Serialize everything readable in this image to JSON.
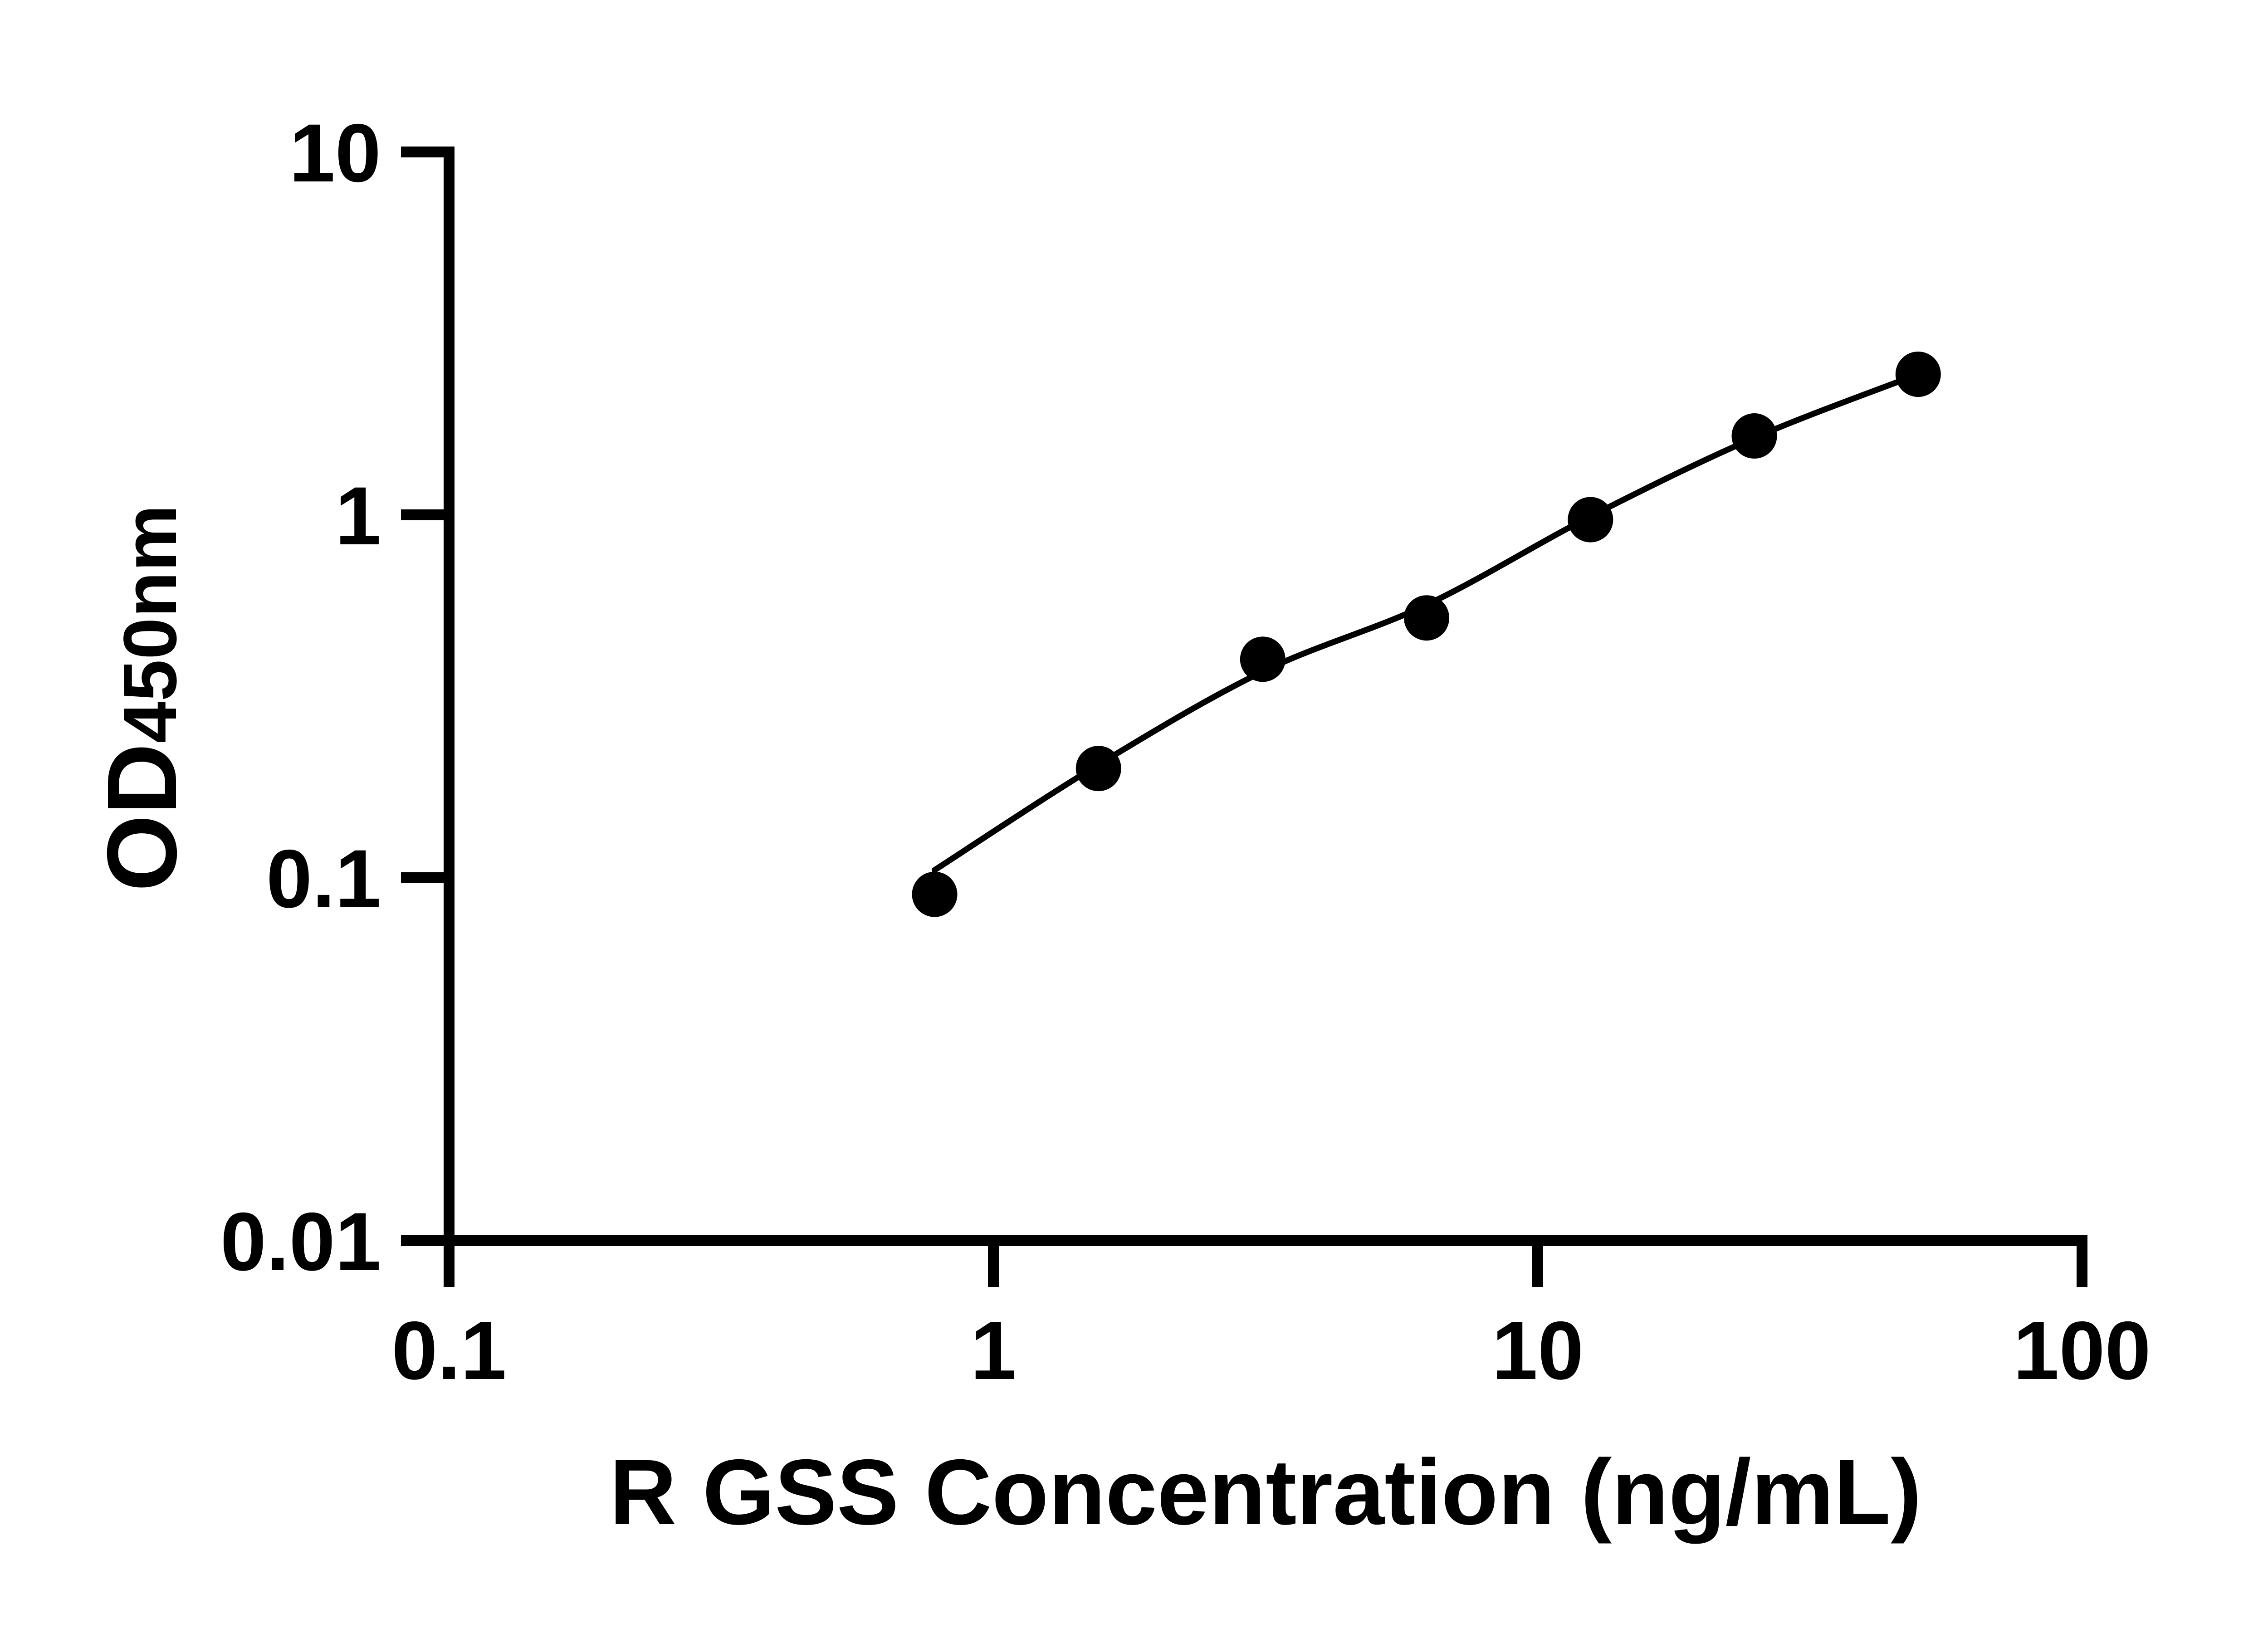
{
  "figure": {
    "background_color": "#ffffff",
    "ink_color": "#000000"
  },
  "chart_data": {
    "type": "scatter",
    "title": "",
    "xlabel": "R GSS Concentration (ng/mL)",
    "ylabel": "OD450nm",
    "ylabel_main": "OD",
    "ylabel_subscript": "450nm",
    "x_scale": "log10",
    "y_scale": "log10",
    "xlim": [
      0.1,
      100
    ],
    "ylim": [
      0.01,
      10
    ],
    "grid": false,
    "legend": false,
    "x_ticks": [
      0.1,
      1,
      10,
      100
    ],
    "x_tick_labels": [
      "0.1",
      "1",
      "10",
      "100"
    ],
    "y_ticks": [
      0.01,
      0.1,
      1,
      10
    ],
    "y_tick_labels": [
      "0.01",
      "0.1",
      "1",
      "10"
    ],
    "series": [
      {
        "name": "standard-points",
        "type": "scatter",
        "marker": "filled-circle",
        "color": "#000000",
        "x": [
          0.78,
          1.56,
          3.125,
          6.25,
          12.5,
          25,
          50
        ],
        "y": [
          0.09,
          0.2,
          0.4,
          0.52,
          0.97,
          1.65,
          2.44
        ]
      },
      {
        "name": "fitted-curve",
        "type": "line",
        "color": "#000000",
        "x": [
          0.78,
          1.56,
          3.125,
          6.25,
          12.5,
          25,
          50
        ],
        "y": [
          0.105,
          0.205,
          0.37,
          0.565,
          0.99,
          1.63,
          2.44
        ]
      }
    ]
  }
}
